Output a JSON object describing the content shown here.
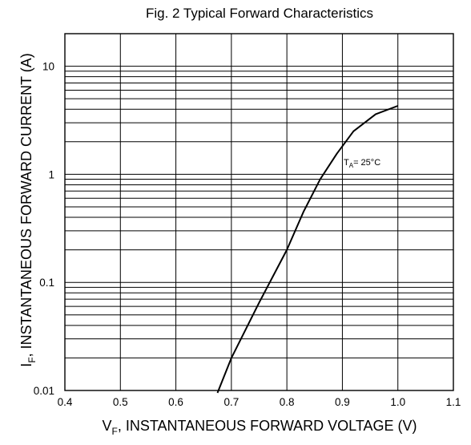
{
  "chart_data": {
    "type": "line",
    "title": "Fig. 2 Typical Forward Characteristics",
    "xlabel": {
      "main": "V",
      "sub": "F",
      "rest": ", INSTANTANEOUS FORWARD VOLTAGE (V)"
    },
    "ylabel": {
      "main": "I",
      "sub": "F",
      "rest": ", INSTANTANEOUS FORWARD CURRENT (A)"
    },
    "x_scale": "linear",
    "y_scale": "log",
    "xlim": [
      0.4,
      1.1
    ],
    "ylim": [
      0.01,
      20
    ],
    "x_ticks": [
      0.4,
      0.5,
      0.6,
      0.7,
      0.8,
      0.9,
      1.0,
      1.1
    ],
    "x_tick_labels": [
      "0.4",
      "0.5",
      "0.6",
      "0.7",
      "0.8",
      "0.9",
      "1.0",
      "1.1"
    ],
    "y_ticks": [
      0.01,
      0.1,
      1,
      10
    ],
    "y_tick_labels": [
      "0.01",
      "0.1",
      "1",
      "10"
    ],
    "grid": true,
    "legend": "none",
    "series": [
      {
        "x": [
          0.675,
          0.7,
          0.75,
          0.8,
          0.83,
          0.86,
          0.89,
          0.92,
          0.96,
          1.0
        ],
        "y": [
          0.0095,
          0.02,
          0.065,
          0.2,
          0.45,
          0.9,
          1.55,
          2.5,
          3.6,
          4.3
        ]
      }
    ],
    "annotation": {
      "main": "T",
      "sub": "A",
      "rest": "= 25°C",
      "x": 0.96,
      "y": 1.3
    }
  }
}
